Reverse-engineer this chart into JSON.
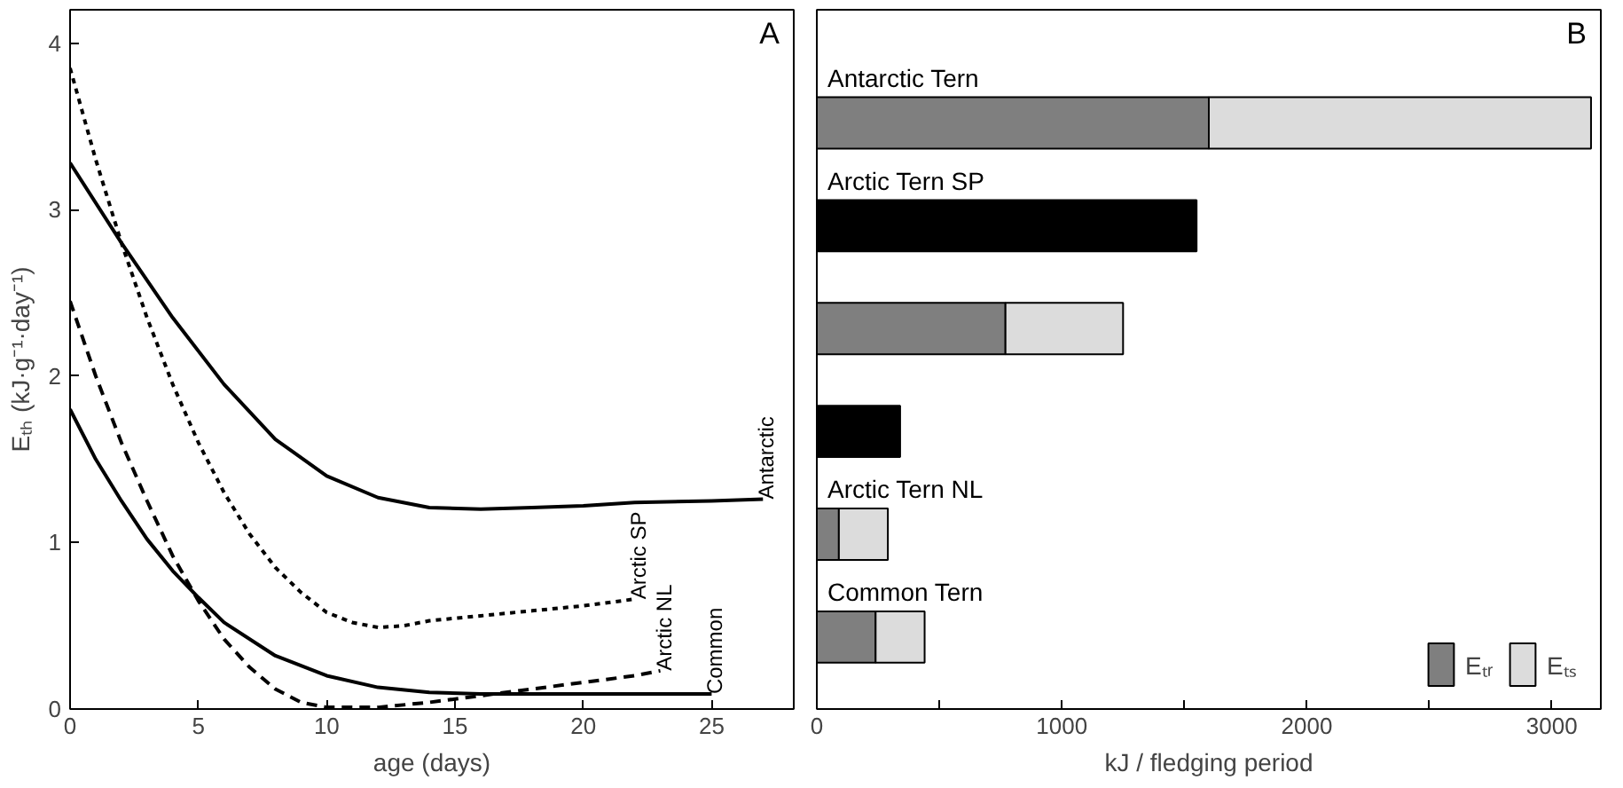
{
  "chart_data": [
    {
      "type": "line",
      "title": "A",
      "xlabel": "age (days)",
      "ylabel": "Eₜₕ (kJ·g⁻¹·day⁻¹)",
      "xlim": [
        0,
        28.2
      ],
      "ylim": [
        0,
        4.2
      ],
      "xticks": [
        0,
        5,
        10,
        15,
        20,
        25
      ],
      "yticks": [
        0,
        1,
        2,
        3,
        4
      ],
      "grid": false,
      "legend": false,
      "series": [
        {
          "name": "Antarctic",
          "color": "#000000",
          "line_style": "solid",
          "x": [
            0,
            2,
            4,
            6,
            8,
            10,
            12,
            14,
            16,
            18,
            20,
            22,
            25,
            27
          ],
          "values": [
            3.28,
            2.8,
            2.35,
            1.95,
            1.62,
            1.4,
            1.27,
            1.21,
            1.2,
            1.21,
            1.22,
            1.24,
            1.25,
            1.26
          ]
        },
        {
          "name": "Arctic SP",
          "color": "#000000",
          "line_style": "dotted",
          "x": [
            0,
            1,
            2,
            3,
            4,
            5,
            6,
            7,
            8,
            9,
            10,
            11,
            12,
            13,
            14,
            16,
            18,
            20,
            22
          ],
          "values": [
            3.85,
            3.3,
            2.8,
            2.35,
            1.95,
            1.6,
            1.3,
            1.05,
            0.85,
            0.7,
            0.58,
            0.52,
            0.49,
            0.5,
            0.53,
            0.56,
            0.59,
            0.62,
            0.66
          ]
        },
        {
          "name": "Arctic NL",
          "color": "#000000",
          "line_style": "dashed",
          "x": [
            0,
            1,
            2,
            3,
            4,
            5,
            6,
            7,
            8,
            9,
            10,
            12,
            14,
            16,
            18,
            20,
            22,
            23
          ],
          "values": [
            2.45,
            2.0,
            1.6,
            1.25,
            0.92,
            0.65,
            0.42,
            0.25,
            0.12,
            0.04,
            0.01,
            0.01,
            0.04,
            0.08,
            0.12,
            0.16,
            0.2,
            0.23
          ]
        },
        {
          "name": "Common",
          "color": "#000000",
          "line_style": "solid",
          "x": [
            0,
            1,
            2,
            3,
            4,
            5,
            6,
            8,
            10,
            12,
            14,
            16,
            20,
            25
          ],
          "values": [
            1.8,
            1.5,
            1.25,
            1.02,
            0.83,
            0.67,
            0.52,
            0.32,
            0.2,
            0.13,
            0.1,
            0.09,
            0.09,
            0.09
          ]
        }
      ]
    },
    {
      "type": "bar",
      "title": "B",
      "orientation": "horizontal",
      "stacked": true,
      "xlabel": "kJ / fledging period",
      "categories": [
        "Antarctic Tern",
        "Arctic Tern SP",
        null,
        null,
        "Arctic Tern NL",
        "Common Tern"
      ],
      "xlim": [
        0,
        3200
      ],
      "xticks": [
        0,
        {
          "value": 500,
          "label": null
        },
        1000,
        {
          "value": 1500,
          "label": null
        },
        2000,
        {
          "value": 2500,
          "label": null
        },
        3000
      ],
      "tick_labels": "x",
      "grid": false,
      "legend": "bottom right",
      "series": [
        {
          "color": "#000000",
          "values": [
            null,
            1550,
            null,
            340,
            null,
            null
          ]
        },
        {
          "name": "Eₜᵣ",
          "color": "#7f7f7f",
          "values": [
            1600,
            null,
            770,
            null,
            90,
            240
          ]
        },
        {
          "name": "Eₜₛ",
          "color": "#dcdcdc",
          "values": [
            1560,
            null,
            480,
            null,
            200,
            200
          ]
        }
      ]
    }
  ]
}
